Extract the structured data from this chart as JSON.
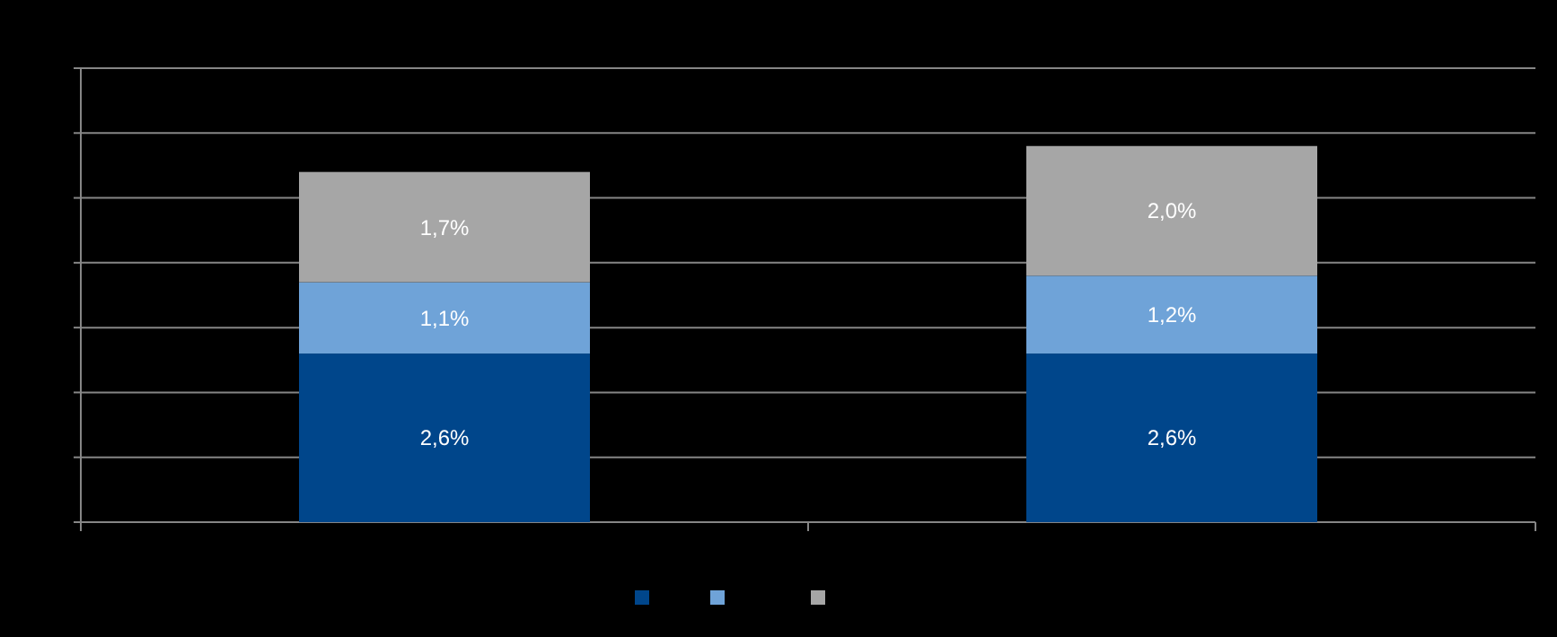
{
  "chart_data": {
    "type": "bar",
    "stacked": true,
    "categories": [
      null,
      null
    ],
    "series": [
      {
        "color": "#00468b",
        "values": [
          2.6,
          2.6
        ],
        "value_labels": [
          "2,6%",
          "2,6%"
        ]
      },
      {
        "color": "#6fa3d8",
        "values": [
          1.1,
          1.2
        ],
        "value_labels": [
          "1,1%",
          "1,2%"
        ]
      },
      {
        "color": "#a6a6a6",
        "values": [
          1.7,
          2.0
        ],
        "value_labels": [
          "1,7%",
          "2,0%"
        ]
      }
    ],
    "ylim": [
      0,
      7
    ],
    "yticks": [
      {
        "value": 0,
        "label": null
      },
      {
        "value": 1,
        "label": null
      },
      {
        "value": 2,
        "label": null
      },
      {
        "value": 3,
        "label": null
      },
      {
        "value": 4,
        "label": null
      },
      {
        "value": 5,
        "label": null
      },
      {
        "value": 6,
        "label": null
      },
      {
        "value": 7,
        "label": null
      }
    ],
    "grid": "y"
  }
}
